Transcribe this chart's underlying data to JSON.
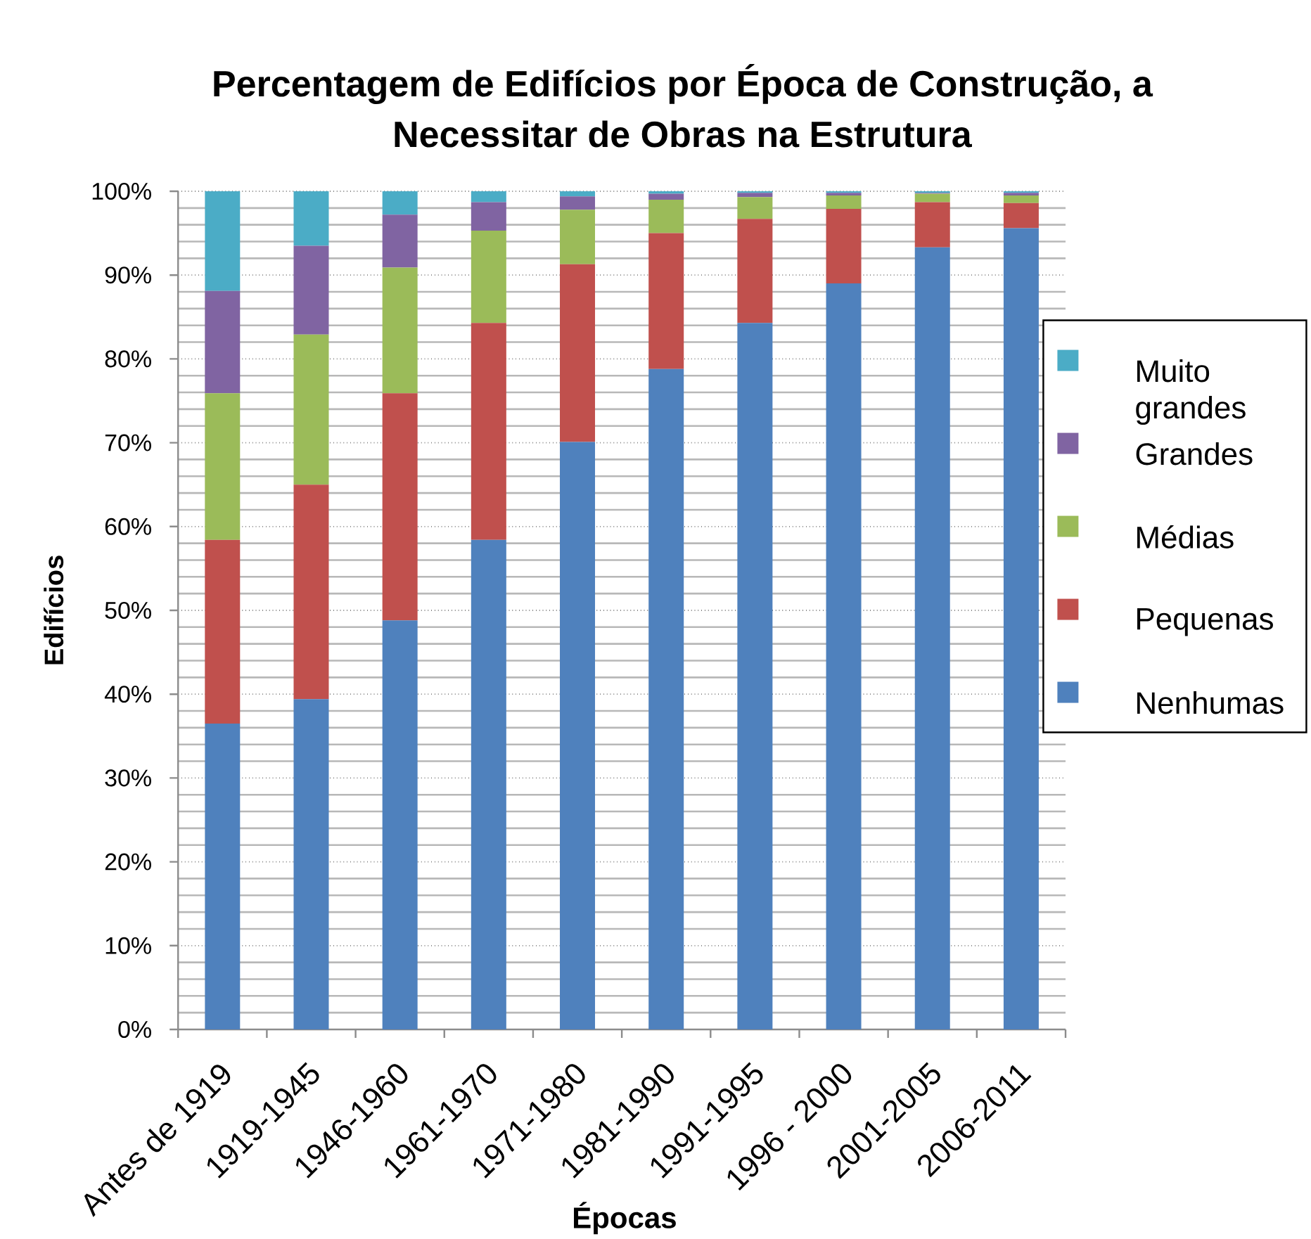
{
  "chart_data": {
    "type": "bar",
    "stacked": true,
    "title": "Percentagem de Edifícios por Época de Construção, a Necessitar de Obras na Estrutura",
    "xlabel": "Épocas",
    "ylabel": "Edifícios",
    "categories": [
      "Antes de 1919",
      "1919-1945",
      "1946-1960",
      "1961-1970",
      "1971-1980",
      "1981-1990",
      "1991-1995",
      "1996 - 2000",
      "2001-2005",
      "2006-2011"
    ],
    "series": [
      {
        "name": "Nenhumas",
        "color": "#4f81bd",
        "values": [
          36.5,
          39.4,
          48.8,
          58.4,
          70.1,
          78.8,
          84.3,
          89.0,
          93.3,
          95.6
        ]
      },
      {
        "name": "Pequenas",
        "color": "#c0504d",
        "values": [
          21.9,
          25.6,
          27.1,
          25.9,
          21.2,
          16.2,
          12.4,
          8.9,
          5.4,
          3.0
        ]
      },
      {
        "name": "Médias",
        "color": "#9bbb59",
        "values": [
          17.5,
          17.9,
          15.0,
          11.0,
          6.5,
          4.0,
          2.6,
          1.6,
          1.0,
          0.9
        ]
      },
      {
        "name": "Grandes",
        "color": "#8064a2",
        "values": [
          12.2,
          10.6,
          6.3,
          3.4,
          1.6,
          0.7,
          0.5,
          0.3,
          0.1,
          0.3
        ]
      },
      {
        "name": "Muito grandes",
        "color": "#4bacc6",
        "values": [
          11.9,
          6.5,
          2.8,
          1.3,
          0.6,
          0.3,
          0.2,
          0.2,
          0.2,
          0.2
        ]
      }
    ],
    "ylim": [
      0,
      100
    ],
    "yticks": [
      {
        "value": 0,
        "label": "0%"
      },
      {
        "value": 10,
        "label": "10%"
      },
      {
        "value": 20,
        "label": "20%"
      },
      {
        "value": 30,
        "label": "30%"
      },
      {
        "value": 40,
        "label": "40%"
      },
      {
        "value": 50,
        "label": "50%"
      },
      {
        "value": 60,
        "label": "60%"
      },
      {
        "value": 70,
        "label": "70%"
      },
      {
        "value": 80,
        "label": "80%"
      },
      {
        "value": 90,
        "label": "90%"
      },
      {
        "value": 100,
        "label": "100%"
      }
    ],
    "grid": "y",
    "legend": "right"
  }
}
